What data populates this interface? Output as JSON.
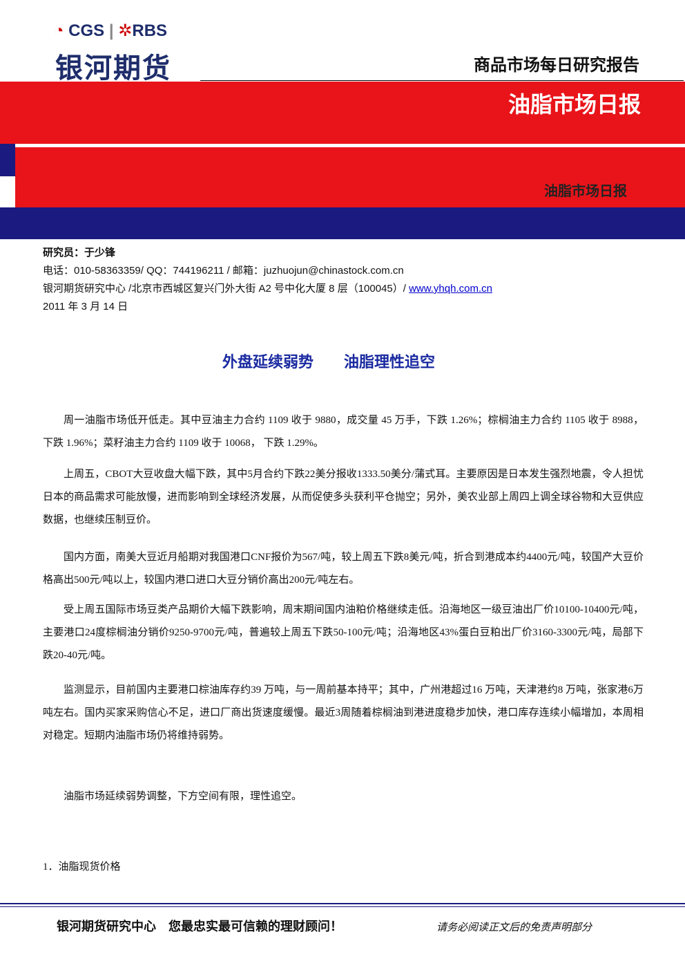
{
  "header": {
    "logo_brand": "CGS",
    "logo_partner": "RBS",
    "company": "银河期货",
    "report_type": "商品市场每日研究报告",
    "banner_title": "油脂市场日报",
    "banner_subtitle": "油脂市场日报"
  },
  "contact": {
    "researcher": "研究员：于少锋",
    "phone": "电话：010-58363359/ QQ：744196211 / 邮箱：juzhuojun@chinastock.com.cn",
    "address": "银河期货研究中心 /北京市西城区复兴门外大街 A2 号中化大厦 8 层（100045）/ ",
    "website": "www.yhqh.com.cn",
    "date": "2011 年 3 月 14 日"
  },
  "article": {
    "title": "外盘延续弱势　　油脂理性追空",
    "paragraphs": [
      "周一油脂市场低开低走。其中豆油主力合约 1109 收于 9880，成交量 45 万手，下跌 1.26%；棕榈油主力合约 1105 收于 8988， 下跌 1.96%；菜籽油主力合约 1109 收于 10068， 下跌 1.29%。",
      "上周五，CBOT大豆收盘大幅下跌，其中5月合约下跌22美分报收1333.50美分/蒲式耳。主要原因是日本发生强烈地震，令人担忧日本的商品需求可能放慢，进而影响到全球经济发展，从而促使多头获利平仓抛空；另外，美农业部上周四上调全球谷物和大豆供应数据，也继续压制豆价。",
      "国内方面，南美大豆近月船期对我国港口CNF报价为567/吨，较上周五下跌8美元/吨，折合到港成本约4400元/吨，较国产大豆价格高出500元/吨以上，较国内港口进口大豆分销价高出200元/吨左右。",
      "受上周五国际市场豆类产品期价大幅下跌影响，周末期间国内油粕价格继续走低。沿海地区一级豆油出厂价10100-10400元/吨，主要港口24度棕榈油分销价9250-9700元/吨，普遍较上周五下跌50-100元/吨；沿海地区43%蛋白豆粕出厂价3160-3300元/吨，局部下跌20-40元/吨。",
      "监测显示，目前国内主要港口棕油库存约39 万吨，与一周前基本持平；其中，广州港超过16 万吨，天津港约8 万吨，张家港6万吨左右。国内买家采购信心不足，进口厂商出货速度缓慢。最近3周随着棕榈油到港进度稳步加快，港口库存连续小幅增加，本周相对稳定。短期内油脂市场仍将维持弱势。"
    ],
    "conclusion": "油脂市场延续弱势调整，下方空间有限，理性追空。",
    "section": "1．油脂现货价格"
  },
  "footer": {
    "slogan": "银河期货研究中心　您最忠实最可信赖的理财顾问！",
    "disclaimer": "请务必阅读正文后的免责声明部分"
  }
}
